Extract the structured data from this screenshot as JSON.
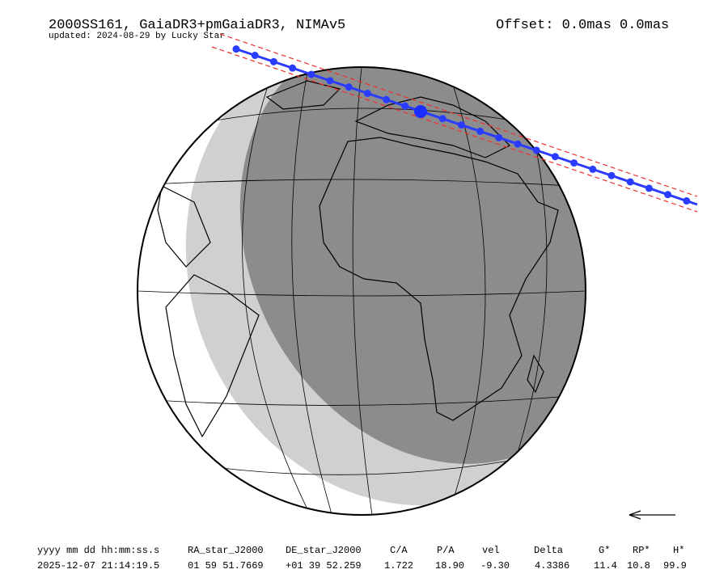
{
  "header": {
    "title": "2000SS161, GaiaDR3+pmGaiaDR3, NIMAv5",
    "subtitle": "updated: 2024-08-29 by Lucky Star",
    "offset": "Offset: 0.0mas 0.0mas"
  },
  "table": {
    "columns": [
      "yyyy mm dd hh:mm:ss.s",
      "RA_star_J2000",
      "DE_star_J2000",
      "C/A",
      "P/A",
      "vel",
      "Delta",
      "G*",
      "RP*",
      "H*"
    ],
    "rows": [
      [
        "2025-12-07 21:14:19.5",
        "01 59 51.7669",
        "+01 39 52.259",
        "1.722",
        "18.90",
        "-9.30",
        "4.3386",
        "11.4",
        "10.8",
        "99.9"
      ]
    ]
  }
}
